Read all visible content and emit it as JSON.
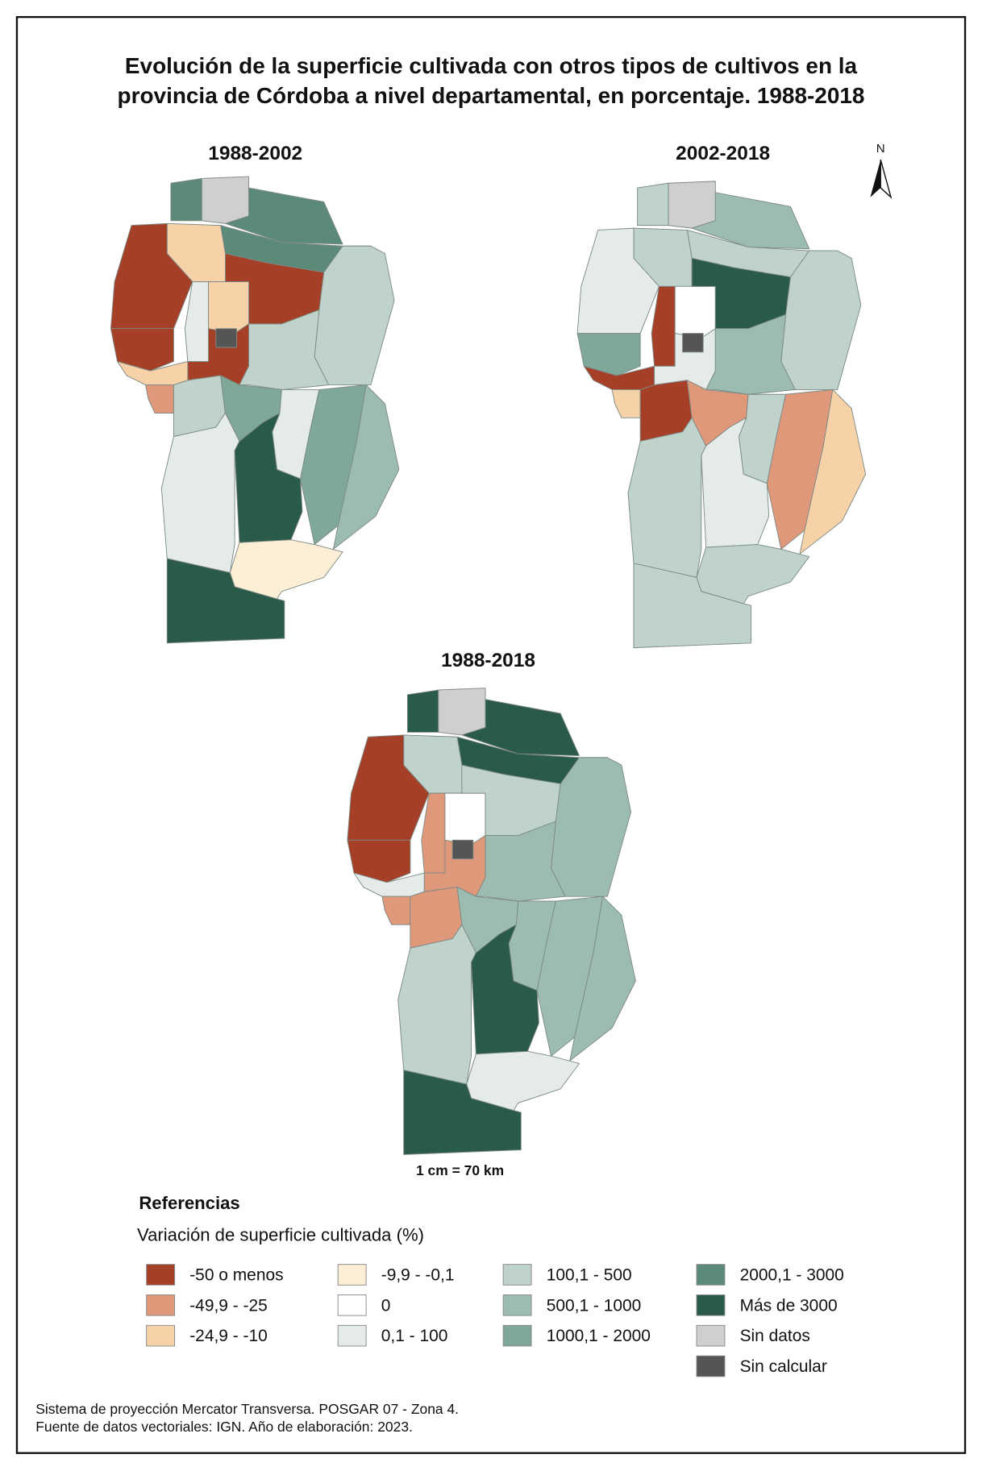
{
  "title_lines": [
    "Evolución de la superficie cultivada con otros tipos de cultivos en la",
    "provincia de Córdoba a nivel departamental, en porcentaje. 1988-2018"
  ],
  "maps": [
    {
      "title": "1988-2002"
    },
    {
      "title": "2002-2018"
    },
    {
      "title": "1988-2018"
    }
  ],
  "north": "N",
  "scale": "1 cm = 70 km",
  "legend": {
    "title": "Referencias",
    "subtitle": "Variación de superficie cultivada (%)",
    "items": [
      {
        "label": "-50 o menos",
        "color": "#a63f28"
      },
      {
        "label": "-49,9 - -25",
        "color": "#e0987a"
      },
      {
        "label": "-24,9 - -10",
        "color": "#f7d2a8"
      },
      {
        "label": "-9,9 - -0,1",
        "color": "#fdefd6"
      },
      {
        "label": "0",
        "color": "#ffffff"
      },
      {
        "label": "0,1 - 100",
        "color": "#e4ebe8"
      },
      {
        "label": "100,1 - 500",
        "color": "#bfd3cb"
      },
      {
        "label": "500,1 - 1000",
        "color": "#9dbcb0"
      },
      {
        "label": "1000,1 - 2000",
        "color": "#7fa898"
      },
      {
        "label": "2000,1 - 3000",
        "color": "#5c8a78"
      },
      {
        "label": "Más de 3000",
        "color": "#2a5a48"
      },
      {
        "label": "Sin datos",
        "color": "#cfcfcf"
      },
      {
        "label": "Sin calcular",
        "color": "#555555"
      }
    ]
  },
  "footer": [
    "Sistema de proyección Mercator Transversa. POSGAR 07 - Zona 4.",
    "Fuente de datos vectoriales: IGN. Año de elaboración: 2023."
  ]
}
